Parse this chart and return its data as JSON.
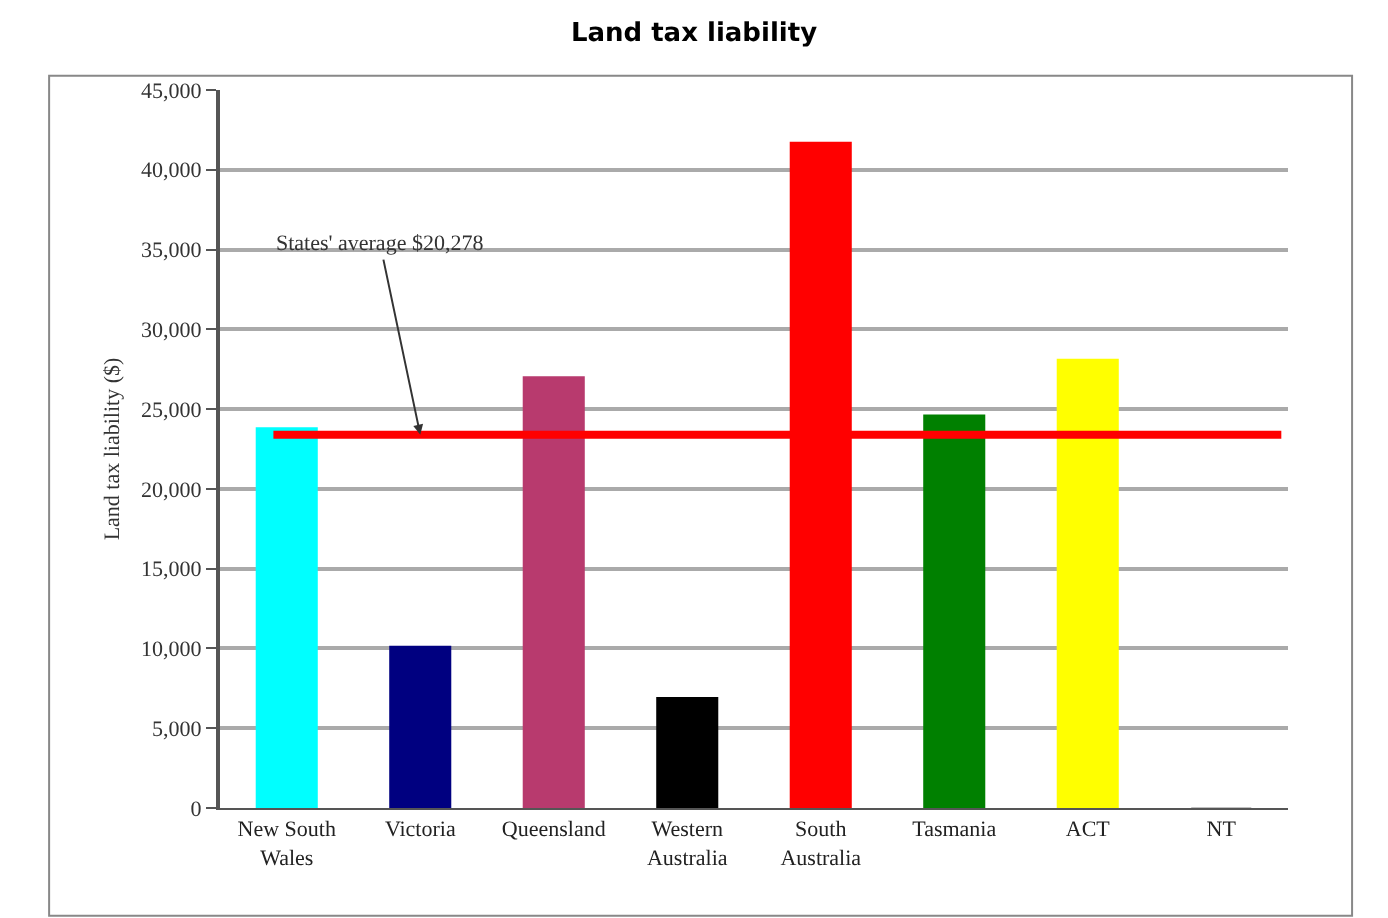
{
  "chart_data": {
    "type": "bar",
    "title": "Land tax liability",
    "ylabel": "Land tax liability ($)",
    "categories": [
      "New South Wales",
      "Victoria",
      "Queensland",
      "Western Australia",
      "South Australia",
      "Tasmania",
      "ACT",
      "NT"
    ],
    "values": [
      23800,
      10100,
      27000,
      6900,
      41700,
      24600,
      28100,
      0
    ],
    "colors": [
      "#00ffff",
      "#000080",
      "#b83a6e",
      "#000000",
      "#ff0000",
      "#008000",
      "#ffff00",
      "#c0c0c0"
    ],
    "ylim": [
      0,
      45000
    ],
    "yticks": [
      {
        "value": 0,
        "label": "0"
      },
      {
        "value": 5000,
        "label": "5,000"
      },
      {
        "value": 10000,
        "label": "10,000"
      },
      {
        "value": 15000,
        "label": "15,000"
      },
      {
        "value": 20000,
        "label": "20,000"
      },
      {
        "value": 25000,
        "label": "25,000"
      },
      {
        "value": 30000,
        "label": "30,000"
      },
      {
        "value": 35000,
        "label": "35,000"
      },
      {
        "value": 40000,
        "label": "40,000"
      },
      {
        "value": 45000,
        "label": "45,000"
      }
    ],
    "grid": "y",
    "ref_lines": [
      {
        "axis": "y",
        "value": 23400,
        "label": "States' average $20,278",
        "color": "#ff0000"
      }
    ]
  }
}
